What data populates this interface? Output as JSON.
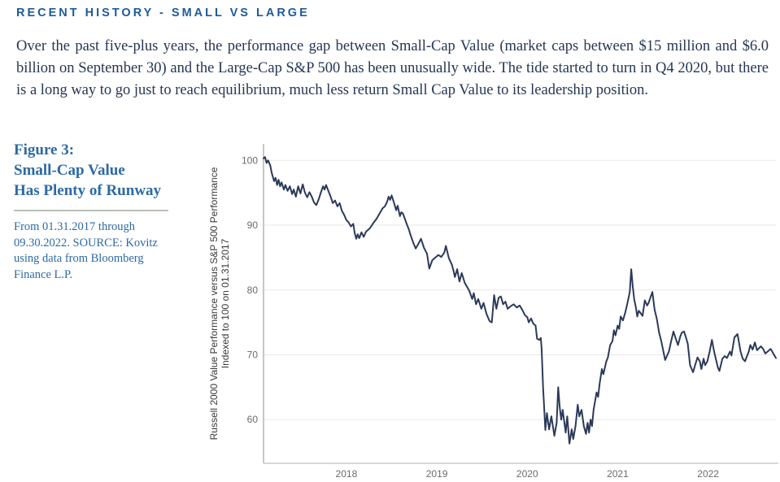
{
  "page": {
    "heading": "RECENT HISTORY - SMALL VS LARGE",
    "paragraph": "Over the past five-plus years, the performance gap between Small-Cap Value (market caps between $15 million and $6.0 billion on September 30) and the Large-Cap S&P 500 has been unusually wide. The tide started to turn in Q4 2020, but there is a long way to go just to reach equilibrium, much less return Small Cap Value to its leadership position."
  },
  "figure_caption": {
    "title_lines": [
      "Figure 3:",
      "Small-Cap Value",
      "Has Plenty of Runway"
    ],
    "source_lines": [
      "From 01.31.2017 through",
      "09.30.2022. SOURCE: Kovitz",
      "using data from Bloomberg",
      "Finance L.P."
    ]
  },
  "colors": {
    "heading_blue": "#1d5b99",
    "caption_blue": "#2d6aa3",
    "body_text": "#253754",
    "caption_divider": "#b9c0b6",
    "line_navy": "#2c3a59",
    "gridline": "#e9e9e9",
    "y_axis_line": "#8f8f8f",
    "x_axis_line": "#c8c8c8",
    "tick_text": "#6b6b6b",
    "axis_title_text": "#3a3a3a"
  },
  "chart_data": {
    "type": "line",
    "ylabel_line1": "Russell 2000 Value Performance versus S&P 500 Performance",
    "ylabel_line2": "Indexed to 100 on 01.31.2017",
    "x_definition": "months elapsed since 01.31.2017",
    "x_range": [
      0,
      68
    ],
    "ylim": [
      53.2,
      102.5
    ],
    "grid": true,
    "legend": "none",
    "yticks": [
      100,
      90,
      80,
      70,
      60
    ],
    "xticks": [
      {
        "label": "2018",
        "m": 11
      },
      {
        "label": "2019",
        "m": 23
      },
      {
        "label": "2020",
        "m": 35
      },
      {
        "label": "2021",
        "m": 47
      },
      {
        "label": "2022",
        "m": 59
      }
    ],
    "points": [
      [
        0,
        100.3
      ],
      [
        0.2,
        100.5
      ],
      [
        0.4,
        99.6
      ],
      [
        0.6,
        100.0
      ],
      [
        0.9,
        99.2
      ],
      [
        1.1,
        98.0
      ],
      [
        1.4,
        96.8
      ],
      [
        1.6,
        97.3
      ],
      [
        1.8,
        96.2
      ],
      [
        2.0,
        97.0
      ],
      [
        2.2,
        96.0
      ],
      [
        2.4,
        96.6
      ],
      [
        2.7,
        95.5
      ],
      [
        2.9,
        96.2
      ],
      [
        3.2,
        95.3
      ],
      [
        3.5,
        96.0
      ],
      [
        3.8,
        94.8
      ],
      [
        4.0,
        95.5
      ],
      [
        4.3,
        94.4
      ],
      [
        4.6,
        96.0
      ],
      [
        4.9,
        94.9
      ],
      [
        5.2,
        96.3
      ],
      [
        5.5,
        95.0
      ],
      [
        5.8,
        94.3
      ],
      [
        6.1,
        95.1
      ],
      [
        6.4,
        94.4
      ],
      [
        6.7,
        93.5
      ],
      [
        7.0,
        93.1
      ],
      [
        7.3,
        93.9
      ],
      [
        7.6,
        95.0
      ],
      [
        7.9,
        96.0
      ],
      [
        8.1,
        95.5
      ],
      [
        8.3,
        96.2
      ],
      [
        8.6,
        95.3
      ],
      [
        8.9,
        94.4
      ],
      [
        9.2,
        93.4
      ],
      [
        9.5,
        93.8
      ],
      [
        9.8,
        92.9
      ],
      [
        10.1,
        93.4
      ],
      [
        10.4,
        92.2
      ],
      [
        10.7,
        91.6
      ],
      [
        11.0,
        90.8
      ],
      [
        11.3,
        90.4
      ],
      [
        11.6,
        89.8
      ],
      [
        11.9,
        90.2
      ],
      [
        12.1,
        88.8
      ],
      [
        12.3,
        87.9
      ],
      [
        12.5,
        88.6
      ],
      [
        12.7,
        88.0
      ],
      [
        13.0,
        88.9
      ],
      [
        13.3,
        88.2
      ],
      [
        13.6,
        89.0
      ],
      [
        14.1,
        89.5
      ],
      [
        14.5,
        90.2
      ],
      [
        15.0,
        91.0
      ],
      [
        15.4,
        91.8
      ],
      [
        15.8,
        92.6
      ],
      [
        16.1,
        92.9
      ],
      [
        16.4,
        93.6
      ],
      [
        16.6,
        94.4
      ],
      [
        16.8,
        93.9
      ],
      [
        17.0,
        94.6
      ],
      [
        17.3,
        93.5
      ],
      [
        17.6,
        92.3
      ],
      [
        17.8,
        93.0
      ],
      [
        18.1,
        91.4
      ],
      [
        18.3,
        92.0
      ],
      [
        18.5,
        91.8
      ],
      [
        19.0,
        90.2
      ],
      [
        19.3,
        89.3
      ],
      [
        19.5,
        88.5
      ],
      [
        19.9,
        87.2
      ],
      [
        20.2,
        86.4
      ],
      [
        20.5,
        87.0
      ],
      [
        20.9,
        87.9
      ],
      [
        21.3,
        86.5
      ],
      [
        21.7,
        85.6
      ],
      [
        22.0,
        83.3
      ],
      [
        22.4,
        84.6
      ],
      [
        22.8,
        85.0
      ],
      [
        23.2,
        85.4
      ],
      [
        23.6,
        85.1
      ],
      [
        24.0,
        85.8
      ],
      [
        24.2,
        86.8
      ],
      [
        24.6,
        84.9
      ],
      [
        25.0,
        83.9
      ],
      [
        25.2,
        83.0
      ],
      [
        25.4,
        82.0
      ],
      [
        25.7,
        83.2
      ],
      [
        26.0,
        81.3
      ],
      [
        26.3,
        82.6
      ],
      [
        26.7,
        81.1
      ],
      [
        27.3,
        79.9
      ],
      [
        27.7,
        78.6
      ],
      [
        27.9,
        79.5
      ],
      [
        28.2,
        77.8
      ],
      [
        28.5,
        78.6
      ],
      [
        28.9,
        77.1
      ],
      [
        29.2,
        78.0
      ],
      [
        29.6,
        76.3
      ],
      [
        30.0,
        75.2
      ],
      [
        30.3,
        75.0
      ],
      [
        30.6,
        79.2
      ],
      [
        30.9,
        77.1
      ],
      [
        31.2,
        78.8
      ],
      [
        31.5,
        79.0
      ],
      [
        31.8,
        77.8
      ],
      [
        32.1,
        78.2
      ],
      [
        32.4,
        77.1
      ],
      [
        32.8,
        77.5
      ],
      [
        33.2,
        77.8
      ],
      [
        33.6,
        77.3
      ],
      [
        34.0,
        77.6
      ],
      [
        34.4,
        76.8
      ],
      [
        34.7,
        76.1
      ],
      [
        35.0,
        75.8
      ],
      [
        35.2,
        75.0
      ],
      [
        35.5,
        75.6
      ],
      [
        35.8,
        74.8
      ],
      [
        36.1,
        74.5
      ],
      [
        36.3,
        72.5
      ],
      [
        36.6,
        72.3
      ],
      [
        36.8,
        72.6
      ],
      [
        36.9,
        71.0
      ],
      [
        37.1,
        65.0
      ],
      [
        37.4,
        58.4
      ],
      [
        37.6,
        61.0
      ],
      [
        37.9,
        58.5
      ],
      [
        38.2,
        60.5
      ],
      [
        38.6,
        57.5
      ],
      [
        38.9,
        59.5
      ],
      [
        39.1,
        65.0
      ],
      [
        39.3,
        62.0
      ],
      [
        39.5,
        60.0
      ],
      [
        39.7,
        61.5
      ],
      [
        40.1,
        58.0
      ],
      [
        40.3,
        60.5
      ],
      [
        40.6,
        56.3
      ],
      [
        40.9,
        58.5
      ],
      [
        41.1,
        57.0
      ],
      [
        41.4,
        59.0
      ],
      [
        41.7,
        62.3
      ],
      [
        41.9,
        60.5
      ],
      [
        42.2,
        61.5
      ],
      [
        42.5,
        59.0
      ],
      [
        42.8,
        57.8
      ],
      [
        43.0,
        59.5
      ],
      [
        43.2,
        58.0
      ],
      [
        43.4,
        60.0
      ],
      [
        43.6,
        59.0
      ],
      [
        43.8,
        61.5
      ],
      [
        44.2,
        64.2
      ],
      [
        44.4,
        63.5
      ],
      [
        44.6,
        65.5
      ],
      [
        44.9,
        67.8
      ],
      [
        45.1,
        67.0
      ],
      [
        45.5,
        69.0
      ],
      [
        45.7,
        69.6
      ],
      [
        46.0,
        71.5
      ],
      [
        46.3,
        72.1
      ],
      [
        46.5,
        73.8
      ],
      [
        46.7,
        73.0
      ],
      [
        47.0,
        74.5
      ],
      [
        47.2,
        74.0
      ],
      [
        47.4,
        75.9
      ],
      [
        47.7,
        75.3
      ],
      [
        48.0,
        76.5
      ],
      [
        48.3,
        78.0
      ],
      [
        48.6,
        79.7
      ],
      [
        48.8,
        83.2
      ],
      [
        49.0,
        80.5
      ],
      [
        49.2,
        78.5
      ],
      [
        49.4,
        77.4
      ],
      [
        49.6,
        75.9
      ],
      [
        49.8,
        76.8
      ],
      [
        50.0,
        76.5
      ],
      [
        50.3,
        76.0
      ],
      [
        50.6,
        78.4
      ],
      [
        50.9,
        77.6
      ],
      [
        51.1,
        78.0
      ],
      [
        51.4,
        79.0
      ],
      [
        51.6,
        79.7
      ],
      [
        51.9,
        77.0
      ],
      [
        52.2,
        75.5
      ],
      [
        52.5,
        73.4
      ],
      [
        52.8,
        72.0
      ],
      [
        53.0,
        70.9
      ],
      [
        53.3,
        69.2
      ],
      [
        53.6,
        70.0
      ],
      [
        53.8,
        70.5
      ],
      [
        54.1,
        72.1
      ],
      [
        54.4,
        73.6
      ],
      [
        54.7,
        72.5
      ],
      [
        55.0,
        71.5
      ],
      [
        55.3,
        72.8
      ],
      [
        55.5,
        73.4
      ],
      [
        55.8,
        73.6
      ],
      [
        56.1,
        72.5
      ],
      [
        56.3,
        71.7
      ],
      [
        56.6,
        68.4
      ],
      [
        57.0,
        67.3
      ],
      [
        57.3,
        68.5
      ],
      [
        57.6,
        69.6
      ],
      [
        57.9,
        69.0
      ],
      [
        58.1,
        67.8
      ],
      [
        58.4,
        69.4
      ],
      [
        58.6,
        68.4
      ],
      [
        58.9,
        69.0
      ],
      [
        59.2,
        70.5
      ],
      [
        59.5,
        72.3
      ],
      [
        59.8,
        70.5
      ],
      [
        60.1,
        69.0
      ],
      [
        60.3,
        68.0
      ],
      [
        60.5,
        67.5
      ],
      [
        60.9,
        69.4
      ],
      [
        61.2,
        69.8
      ],
      [
        61.5,
        69.5
      ],
      [
        61.7,
        70.0
      ],
      [
        61.9,
        70.5
      ],
      [
        62.1,
        69.9
      ],
      [
        62.5,
        72.7
      ],
      [
        62.9,
        73.2
      ],
      [
        63.3,
        70.5
      ],
      [
        63.6,
        69.4
      ],
      [
        63.9,
        69.0
      ],
      [
        64.4,
        70.5
      ],
      [
        64.6,
        71.5
      ],
      [
        64.9,
        70.8
      ],
      [
        65.2,
        71.9
      ],
      [
        65.5,
        70.7
      ],
      [
        66.0,
        71.3
      ],
      [
        66.3,
        70.9
      ],
      [
        66.6,
        70.2
      ],
      [
        67.0,
        70.6
      ],
      [
        67.3,
        70.9
      ],
      [
        67.6,
        70.3
      ],
      [
        68.0,
        69.5
      ]
    ]
  }
}
